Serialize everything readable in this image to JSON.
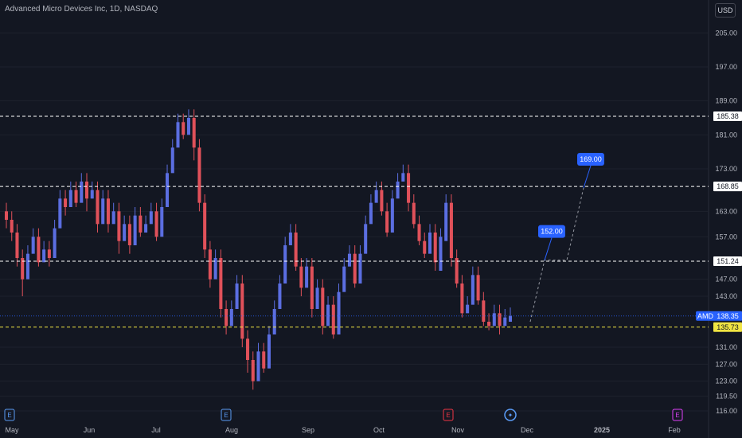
{
  "header": {
    "title": "Advanced Micro Devices Inc, 1D, NASDAQ",
    "currency_button": "USD"
  },
  "chart_data": {
    "type": "candlestick",
    "symbol": "AMD",
    "y_axis_ticks": [
      205.0,
      197.0,
      189.0,
      181.0,
      173.0,
      163.0,
      157.0,
      147.0,
      143.0,
      131.0,
      127.0,
      123.0,
      119.5,
      116.0
    ],
    "x_axis_labels": [
      "May",
      "Jun",
      "Jul",
      "Aug",
      "Sep",
      "Oct",
      "Nov",
      "Dec",
      "2025",
      "Feb"
    ],
    "horizontal_levels": [
      {
        "value": 185.38,
        "label": "185.38",
        "color": "#ffffff"
      },
      {
        "value": 168.85,
        "label": "168.85",
        "color": "#ffffff"
      },
      {
        "value": 151.24,
        "label": "151.24",
        "color": "#ffffff"
      },
      {
        "value": 135.73,
        "label": "135.73",
        "color": "#f0e442"
      }
    ],
    "last_price": {
      "symbol": "AMD",
      "value": 138.35,
      "label": "138.35",
      "color": "#2962ff"
    },
    "targets": [
      {
        "label": "152.00",
        "value": 152.0
      },
      {
        "label": "169.00",
        "value": 169.0
      }
    ],
    "events": [
      {
        "type": "earnings",
        "symbol": "E",
        "month": "May"
      },
      {
        "type": "earnings",
        "symbol": "E",
        "month": "Aug"
      },
      {
        "type": "earnings",
        "symbol": "E",
        "month": "Nov",
        "color": "#f23645"
      },
      {
        "type": "dividend",
        "symbol": "✦",
        "month": "Nov"
      },
      {
        "type": "earnings",
        "symbol": "E",
        "month": "Feb",
        "color": "#e040fb"
      }
    ],
    "colors": {
      "up": "#5b6ee1",
      "down": "#e0515a",
      "background": "#131722",
      "grid": "#1e222d",
      "axis_text": "#b2b5be"
    },
    "series": [
      [
        163,
        161,
        159
      ],
      [
        161,
        158,
        156
      ],
      [
        158,
        152,
        150
      ],
      [
        152,
        147,
        143
      ],
      [
        147,
        153,
        151
      ],
      [
        153,
        157,
        155
      ],
      [
        157,
        151,
        150
      ],
      [
        151,
        154,
        153
      ],
      [
        154,
        152,
        150
      ],
      [
        152,
        159,
        158
      ],
      [
        159,
        166,
        163
      ],
      [
        166,
        164,
        162
      ],
      [
        164,
        168,
        167
      ],
      [
        168,
        165,
        164
      ],
      [
        165,
        170,
        169
      ],
      [
        170,
        166,
        163
      ],
      [
        166,
        168,
        166
      ],
      [
        168,
        160,
        158
      ],
      [
        160,
        166,
        163
      ],
      [
        166,
        160,
        158
      ],
      [
        160,
        163,
        161
      ],
      [
        163,
        156,
        153
      ],
      [
        156,
        160,
        159
      ],
      [
        160,
        155,
        153
      ],
      [
        155,
        162,
        161
      ],
      [
        162,
        158,
        157
      ],
      [
        158,
        160,
        159
      ],
      [
        160,
        163,
        162
      ],
      [
        163,
        157,
        156
      ],
      [
        157,
        164,
        163
      ],
      [
        164,
        172,
        171
      ],
      [
        172,
        178,
        177
      ],
      [
        178,
        184,
        183
      ],
      [
        184,
        181,
        180
      ],
      [
        181,
        185,
        184
      ],
      [
        185,
        178,
        175
      ],
      [
        178,
        165,
        163
      ],
      [
        165,
        154,
        152
      ],
      [
        154,
        147,
        145
      ],
      [
        147,
        152,
        150
      ],
      [
        152,
        140,
        138
      ],
      [
        140,
        136,
        134
      ],
      [
        136,
        140,
        139
      ],
      [
        140,
        146,
        144
      ],
      [
        146,
        133,
        131
      ],
      [
        133,
        128,
        125
      ],
      [
        128,
        123,
        121
      ],
      [
        123,
        130,
        128
      ],
      [
        130,
        126,
        125
      ],
      [
        126,
        134,
        133
      ],
      [
        134,
        140,
        139
      ],
      [
        140,
        146,
        145
      ],
      [
        146,
        155,
        154
      ],
      [
        155,
        158,
        157
      ],
      [
        158,
        150,
        149
      ],
      [
        150,
        145,
        143
      ],
      [
        145,
        150,
        148
      ],
      [
        150,
        140,
        138
      ],
      [
        140,
        145,
        144
      ],
      [
        145,
        136,
        134
      ],
      [
        136,
        141,
        139
      ],
      [
        141,
        134,
        133
      ],
      [
        134,
        144,
        143
      ],
      [
        144,
        150,
        149
      ],
      [
        150,
        153,
        152
      ],
      [
        153,
        146,
        145
      ],
      [
        146,
        153,
        152
      ],
      [
        153,
        160,
        159
      ],
      [
        160,
        165,
        163
      ],
      [
        165,
        168,
        167
      ],
      [
        168,
        163,
        162
      ],
      [
        163,
        158,
        157
      ],
      [
        158,
        166,
        165
      ],
      [
        166,
        170,
        168
      ],
      [
        170,
        172,
        171
      ],
      [
        172,
        165,
        163
      ],
      [
        165,
        160,
        159
      ],
      [
        160,
        156,
        155
      ],
      [
        156,
        153,
        152
      ],
      [
        153,
        158,
        157
      ],
      [
        158,
        151,
        149
      ],
      [
        149,
        157,
        156
      ],
      [
        156,
        165,
        164
      ],
      [
        165,
        152,
        150
      ],
      [
        152,
        146,
        145
      ],
      [
        146,
        139,
        138
      ],
      [
        139,
        141,
        140
      ],
      [
        141,
        148,
        147
      ],
      [
        148,
        142,
        141
      ],
      [
        142,
        137,
        136
      ],
      [
        137,
        136,
        135
      ],
      [
        136,
        139,
        138
      ],
      [
        139,
        136,
        134
      ],
      [
        136,
        138,
        137
      ],
      [
        137,
        138.35,
        138
      ]
    ]
  }
}
